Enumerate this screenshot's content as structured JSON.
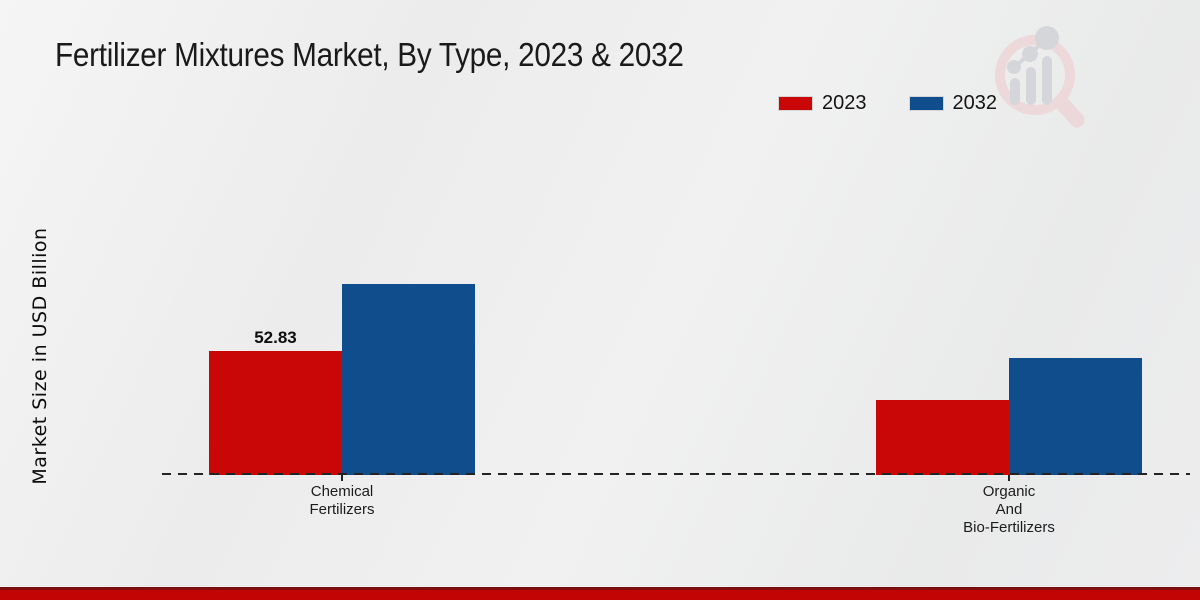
{
  "page": {
    "title": "Fertilizer Mixtures Market, By Type, 2023 & 2032"
  },
  "y_axis": {
    "label": "Market Size in USD Billion"
  },
  "legend": {
    "items": [
      {
        "label": "2023",
        "color": "#c90707"
      },
      {
        "label": "2032",
        "color": "#0f4d8c"
      }
    ]
  },
  "icons": {
    "watermark": "magnifier-bar-chart-logo"
  },
  "footer": {
    "strip_color": "#c20404"
  },
  "chart_data": {
    "type": "bar",
    "title": "Fertilizer Mixtures Market, By Type, 2023 & 2032",
    "xlabel": "",
    "ylabel": "Market Size in USD Billion",
    "categories": [
      "Chemical\nFertilizers",
      "Organic\nAnd\nBio-Fertilizers"
    ],
    "series": [
      {
        "name": "2023",
        "color": "#c90707",
        "values": [
          52.83,
          32.0
        ],
        "value_labels": [
          "52.83",
          ""
        ]
      },
      {
        "name": "2032",
        "color": "#0f4d8c",
        "values": [
          81.4,
          49.9
        ],
        "value_labels": [
          "",
          ""
        ]
      }
    ],
    "ylim": [
      0,
      90
    ],
    "grid": false,
    "axis_line": "dashed-baseline-only",
    "legend_position": "top-right",
    "shown_data_labels": [
      "52.83"
    ]
  }
}
